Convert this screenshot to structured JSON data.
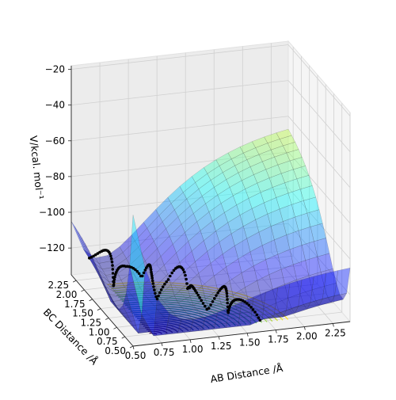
{
  "chart_data": {
    "type": "surface-3d",
    "title": "",
    "xlabel": "AB Distance /Å",
    "ylabel": "BC Distance /Å",
    "zlabel": "V/kcal. mol⁻¹",
    "xlim": [
      0.5,
      2.4
    ],
    "ylim": [
      0.5,
      2.4
    ],
    "zlim": [
      -135,
      -18
    ],
    "x_ticks": [
      "0.50",
      "0.75",
      "1.00",
      "1.25",
      "1.50",
      "1.75",
      "2.00",
      "2.25"
    ],
    "y_ticks": [
      "0.50",
      "0.75",
      "1.00",
      "1.25",
      "1.50",
      "1.75",
      "2.00",
      "2.25"
    ],
    "z_ticks": [
      "−120",
      "−100",
      "−80",
      "−60",
      "−40",
      "−20"
    ],
    "x_tick_values": [
      0.5,
      0.75,
      1.0,
      1.25,
      1.5,
      1.75,
      2.0,
      2.25
    ],
    "y_tick_values": [
      0.5,
      0.75,
      1.0,
      1.25,
      1.5,
      1.75,
      2.0,
      2.25
    ],
    "z_tick_values": [
      -120,
      -100,
      -80,
      -60,
      -40,
      -20
    ],
    "grid": true,
    "surface_colormap": "jet",
    "contour_colormap": "viridis",
    "trajectory_color": "#000000",
    "contour_levels": 26
  }
}
